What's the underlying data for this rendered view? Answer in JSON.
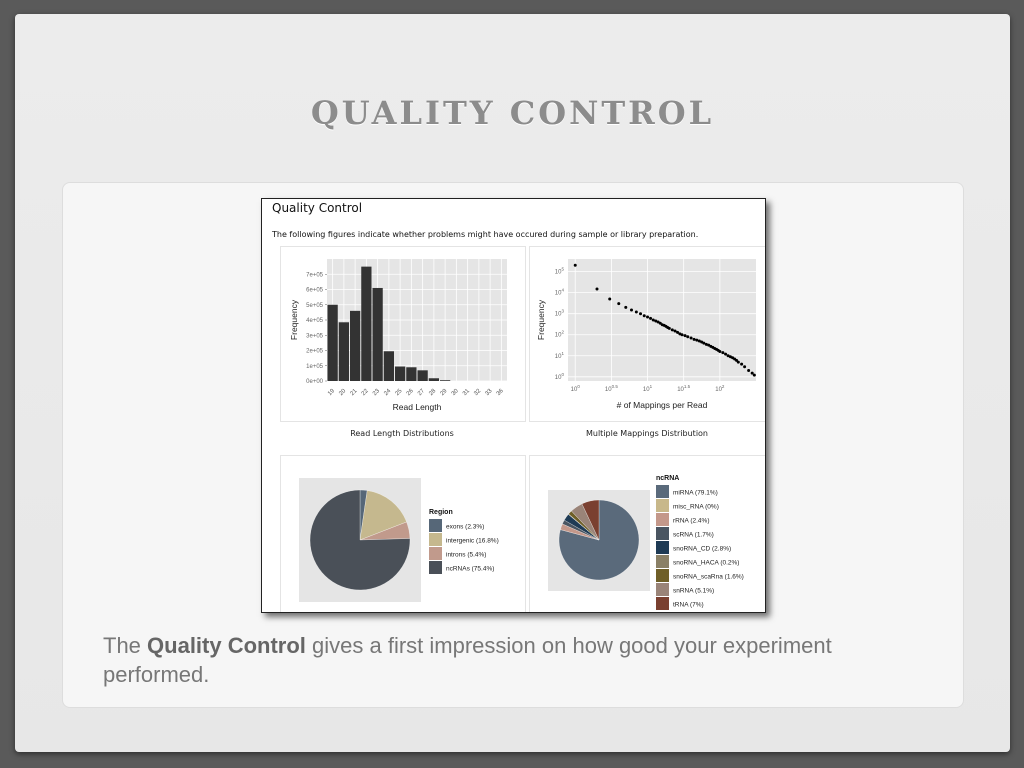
{
  "slide": {
    "title": "QUALITY CONTROL",
    "body_prefix": "The ",
    "body_bold": "Quality Control",
    "body_suffix": " gives a first impression on how good your experiment performed."
  },
  "report": {
    "title": "Quality Control",
    "description": "The following figures indicate whether problems might have occured during sample or library preparation.",
    "captions": {
      "read_length": "Read Length Distributions",
      "multi_mapping": "Multiple Mappings Distribution"
    }
  },
  "chart_data": [
    {
      "type": "bar",
      "xlabel": "Read Length",
      "ylabel": "Frequency",
      "categories": [
        "19",
        "20",
        "21",
        "22",
        "23",
        "24",
        "25",
        "26",
        "27",
        "28",
        "29",
        "30",
        "31",
        "32",
        "33",
        "36"
      ],
      "values": [
        500000,
        385000,
        460000,
        750000,
        610000,
        195000,
        95000,
        90000,
        70000,
        18000,
        5000,
        0,
        0,
        0,
        0,
        0
      ],
      "yticks": [
        "0e+00",
        "1e+05",
        "2e+05",
        "3e+05",
        "4e+05",
        "5e+05",
        "6e+05",
        "7e+05"
      ],
      "ylim": [
        0,
        800000
      ]
    },
    {
      "type": "scatter",
      "xlabel": "# of Mappings per Read",
      "ylabel": "Frequency",
      "xscale": "log10",
      "yscale": "log10",
      "xticks": [
        "10^0",
        "10^0.5",
        "10^1",
        "10^1.5",
        "10^2"
      ],
      "yticks": [
        "10^0",
        "10^1",
        "10^2",
        "10^3",
        "10^4",
        "10^5"
      ],
      "points": [
        [
          1,
          200000
        ],
        [
          2,
          15000
        ],
        [
          3,
          5000
        ],
        [
          4,
          3000
        ],
        [
          5,
          2000
        ],
        [
          6,
          1500
        ],
        [
          7,
          1200
        ],
        [
          8,
          1000
        ],
        [
          9,
          800
        ],
        [
          10,
          700
        ],
        [
          11,
          600
        ],
        [
          12,
          500
        ],
        [
          13,
          450
        ],
        [
          14,
          400
        ],
        [
          15,
          350
        ],
        [
          16,
          300
        ],
        [
          17,
          280
        ],
        [
          18,
          250
        ],
        [
          19,
          220
        ],
        [
          20,
          200
        ],
        [
          22,
          170
        ],
        [
          24,
          150
        ],
        [
          26,
          130
        ],
        [
          28,
          110
        ],
        [
          30,
          100
        ],
        [
          33,
          90
        ],
        [
          36,
          80
        ],
        [
          40,
          70
        ],
        [
          44,
          60
        ],
        [
          48,
          55
        ],
        [
          52,
          50
        ],
        [
          56,
          45
        ],
        [
          60,
          40
        ],
        [
          65,
          35
        ],
        [
          70,
          32
        ],
        [
          75,
          28
        ],
        [
          80,
          25
        ],
        [
          85,
          22
        ],
        [
          90,
          20
        ],
        [
          95,
          18
        ],
        [
          100,
          16
        ],
        [
          110,
          14
        ],
        [
          120,
          12
        ],
        [
          130,
          10
        ],
        [
          140,
          9
        ],
        [
          150,
          8
        ],
        [
          160,
          7
        ],
        [
          170,
          6
        ],
        [
          180,
          5
        ],
        [
          200,
          4
        ],
        [
          220,
          3
        ],
        [
          250,
          2
        ],
        [
          280,
          1.5
        ],
        [
          300,
          1.2
        ]
      ]
    },
    {
      "type": "pie",
      "legend_title": "Region",
      "slices": [
        {
          "label": "exons (2.3%)",
          "value": 2.3,
          "color": "#566778"
        },
        {
          "label": "intergenic (16.8%)",
          "value": 16.8,
          "color": "#c5b88e"
        },
        {
          "label": "introns (5.4%)",
          "value": 5.4,
          "color": "#c19a8c"
        },
        {
          "label": "ncRNAs (75.4%)",
          "value": 75.4,
          "color": "#4a5058"
        }
      ]
    },
    {
      "type": "pie",
      "legend_title": "ncRNA",
      "slices": [
        {
          "label": "miRNA (79.1%)",
          "value": 79.1,
          "color": "#5a6a7b"
        },
        {
          "label": "misc_RNA (0%)",
          "value": 0.0,
          "color": "#c8b88a"
        },
        {
          "label": "rRNA (2.4%)",
          "value": 2.4,
          "color": "#c4988a"
        },
        {
          "label": "scRNA (1.7%)",
          "value": 1.7,
          "color": "#4a5561"
        },
        {
          "label": "snoRNA_CD (2.8%)",
          "value": 2.8,
          "color": "#1f3b55"
        },
        {
          "label": "snoRNA_HACA (0.2%)",
          "value": 0.2,
          "color": "#8a8066"
        },
        {
          "label": "snoRNA_scaRna (1.6%)",
          "value": 1.6,
          "color": "#6f5f28"
        },
        {
          "label": "snRNA (5.1%)",
          "value": 5.1,
          "color": "#9a8478"
        },
        {
          "label": "tRNA (7%)",
          "value": 7.0,
          "color": "#7a4030"
        }
      ]
    }
  ]
}
